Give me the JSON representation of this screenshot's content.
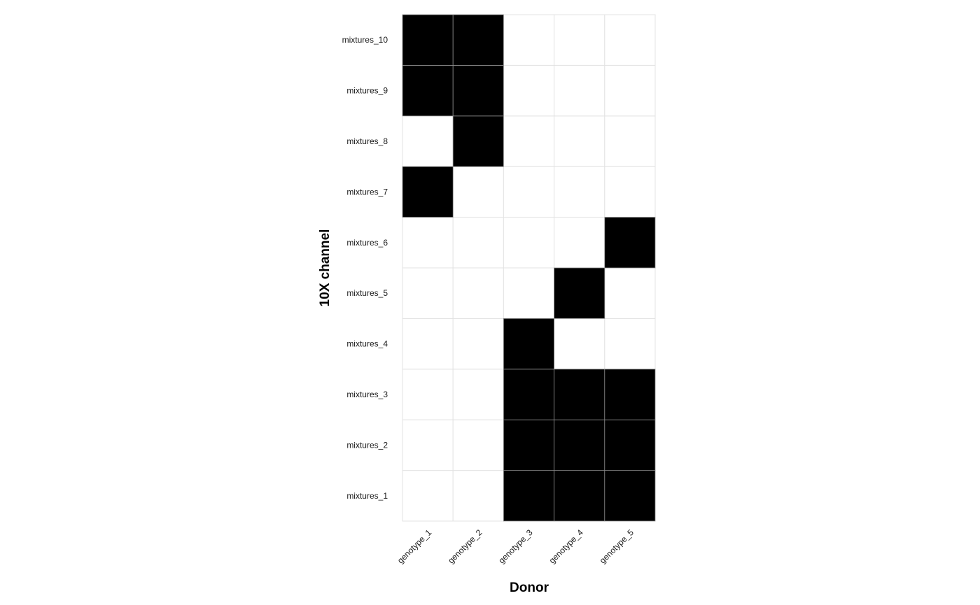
{
  "chart_data": {
    "type": "heatmap",
    "title": "",
    "xlabel": "Donor",
    "ylabel": "10X channel",
    "x_categories": [
      "genotype_1",
      "genotype_2",
      "genotype_3",
      "genotype_4",
      "genotype_5"
    ],
    "y_categories": [
      "mixtures_1",
      "mixtures_2",
      "mixtures_3",
      "mixtures_4",
      "mixtures_5",
      "mixtures_6",
      "mixtures_7",
      "mixtures_8",
      "mixtures_9",
      "mixtures_10"
    ],
    "values": [
      [
        0,
        0,
        1,
        1,
        1
      ],
      [
        0,
        0,
        1,
        1,
        1
      ],
      [
        0,
        0,
        1,
        1,
        1
      ],
      [
        0,
        0,
        1,
        0,
        0
      ],
      [
        0,
        0,
        0,
        1,
        0
      ],
      [
        0,
        0,
        0,
        0,
        1
      ],
      [
        1,
        0,
        0,
        0,
        0
      ],
      [
        0,
        1,
        0,
        0,
        0
      ],
      [
        1,
        1,
        0,
        0,
        0
      ],
      [
        1,
        1,
        0,
        0,
        0
      ]
    ],
    "colors": {
      "present": "#000000",
      "absent": "#ffffff",
      "cell_border": "#e3e3e3",
      "filled_border": "#8c8c8c"
    },
    "legend": "none",
    "grid": true
  }
}
